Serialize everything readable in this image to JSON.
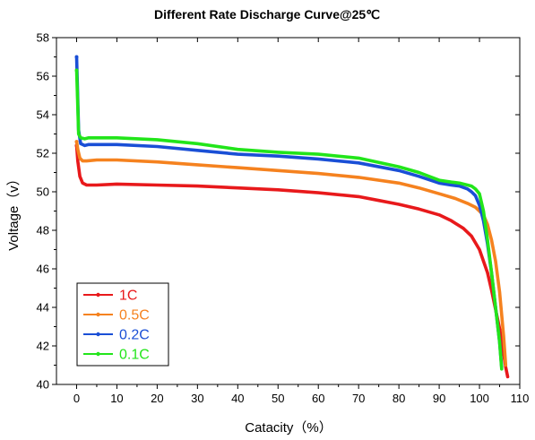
{
  "chart_data": {
    "type": "line",
    "title": "Different Rate Discharge Curve@25℃",
    "xlabel": "Catacity（%）",
    "ylabel": "Voltage（v）",
    "xlim": [
      -5,
      110
    ],
    "ylim": [
      40,
      58
    ],
    "xticks": [
      0,
      10,
      20,
      30,
      40,
      50,
      60,
      70,
      80,
      90,
      100,
      110
    ],
    "yticks": [
      40,
      42,
      44,
      46,
      48,
      50,
      52,
      54,
      56,
      58
    ],
    "legend_position": "bottom-left",
    "grid": false,
    "series": [
      {
        "name": "1C",
        "color": "#e8191b",
        "x": [
          0,
          0.3,
          0.8,
          1.5,
          2.5,
          5,
          10,
          20,
          30,
          40,
          50,
          60,
          70,
          75,
          80,
          85,
          90,
          93,
          96,
          98,
          100,
          102,
          103,
          104,
          105,
          105.5,
          106,
          106.5,
          107
        ],
        "y": [
          52.4,
          51.6,
          50.8,
          50.45,
          50.35,
          50.35,
          50.4,
          50.35,
          50.3,
          50.2,
          50.1,
          49.95,
          49.75,
          49.55,
          49.35,
          49.1,
          48.8,
          48.5,
          48.1,
          47.7,
          47.0,
          45.8,
          44.9,
          43.9,
          42.9,
          42.3,
          41.6,
          40.9,
          40.4
        ]
      },
      {
        "name": "0.5C",
        "color": "#f5821f",
        "x": [
          0,
          0.3,
          0.8,
          1.5,
          2.5,
          5,
          10,
          20,
          30,
          40,
          50,
          60,
          70,
          80,
          85,
          90,
          94,
          97,
          99,
          101,
          102,
          103,
          104,
          105,
          106,
          106.5
        ],
        "y": [
          52.6,
          52.2,
          51.75,
          51.6,
          51.6,
          51.65,
          51.65,
          51.55,
          51.4,
          51.25,
          51.1,
          50.95,
          50.75,
          50.45,
          50.2,
          49.9,
          49.65,
          49.4,
          49.2,
          48.8,
          48.3,
          47.5,
          46.4,
          44.8,
          42.5,
          41.0
        ]
      },
      {
        "name": "0.2C",
        "color": "#1a4fd6",
        "x": [
          0,
          0.2,
          0.5,
          1,
          2,
          3,
          5,
          10,
          20,
          30,
          40,
          50,
          60,
          70,
          80,
          85,
          90,
          93,
          95,
          97,
          98,
          99,
          100,
          101,
          102,
          103,
          104,
          105,
          105.5
        ],
        "y": [
          57.0,
          55.5,
          53.2,
          52.5,
          52.4,
          52.45,
          52.45,
          52.45,
          52.35,
          52.15,
          51.95,
          51.85,
          51.7,
          51.5,
          51.1,
          50.8,
          50.45,
          50.35,
          50.3,
          50.15,
          50.0,
          49.8,
          49.3,
          48.5,
          47.3,
          45.8,
          44.0,
          42.2,
          40.9
        ]
      },
      {
        "name": "0.1C",
        "color": "#22e51a",
        "x": [
          0,
          0.2,
          0.5,
          1,
          2,
          3,
          5,
          10,
          20,
          30,
          40,
          50,
          60,
          70,
          80,
          85,
          90,
          93,
          95,
          97,
          98,
          99,
          100,
          101,
          102,
          103,
          104,
          105,
          105.5
        ],
        "y": [
          56.3,
          55.0,
          53.0,
          52.8,
          52.75,
          52.8,
          52.8,
          52.8,
          52.7,
          52.5,
          52.2,
          52.05,
          51.95,
          51.75,
          51.3,
          51.0,
          50.6,
          50.5,
          50.45,
          50.35,
          50.3,
          50.15,
          49.9,
          49.0,
          47.5,
          45.8,
          44.0,
          42.2,
          40.8
        ]
      }
    ]
  }
}
